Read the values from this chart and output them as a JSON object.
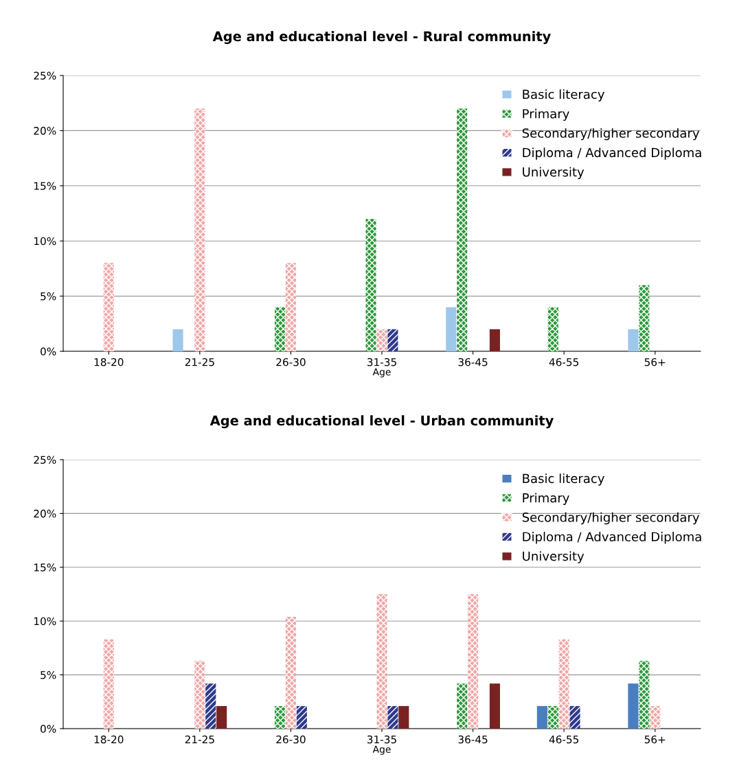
{
  "chart_data": [
    {
      "type": "bar",
      "title": "Age and educational level - Rural community",
      "xlabel": "Age",
      "categories": [
        "18-20",
        "21-25",
        "26-30",
        "31-35",
        "36-45",
        "46-55",
        "56+"
      ],
      "series": [
        {
          "name": "Basic literacy",
          "color": "#9dc8ec",
          "values": [
            0,
            2,
            0,
            0,
            4,
            0,
            2
          ]
        },
        {
          "name": "Primary",
          "color": "#2e9a3c",
          "values": [
            0,
            0,
            4,
            12,
            22,
            4,
            6
          ]
        },
        {
          "name": "Secondary/higher secondary",
          "color": "#f0a8a8",
          "values": [
            8,
            22,
            8,
            2,
            0,
            0,
            0
          ]
        },
        {
          "name": "Diploma / Advanced Diploma",
          "color": "#2f3a8c",
          "values": [
            0,
            0,
            0,
            2,
            0,
            0,
            0
          ]
        },
        {
          "name": "University",
          "color": "#7a2222",
          "values": [
            0,
            0,
            0,
            0,
            2,
            0,
            0
          ]
        }
      ],
      "ylim": [
        0,
        25
      ],
      "yticks": [
        {
          "value": 0,
          "label": "0%"
        },
        {
          "value": 5,
          "label": "5%"
        },
        {
          "value": 10,
          "label": "10%"
        },
        {
          "value": 15,
          "label": "15%"
        },
        {
          "value": 20,
          "label": "20%"
        },
        {
          "value": 25,
          "label": "25%"
        }
      ],
      "grid": "y",
      "legend": "top right"
    },
    {
      "type": "bar",
      "title": "Age and educational level - Urban community",
      "xlabel": "Age",
      "categories": [
        "18-20",
        "21-25",
        "26-30",
        "31-35",
        "36-45",
        "46-55",
        "56+"
      ],
      "series": [
        {
          "name": "Basic literacy",
          "color": "#4a7ec0",
          "values": [
            0,
            0,
            0,
            0,
            0,
            2.1,
            4.2
          ]
        },
        {
          "name": "Primary",
          "color": "#2e9a3c",
          "values": [
            0,
            0,
            2.1,
            0,
            4.2,
            2.1,
            6.3
          ]
        },
        {
          "name": "Secondary/higher secondary",
          "color": "#f0a8a8",
          "values": [
            8.3,
            6.3,
            10.4,
            12.5,
            12.5,
            8.3,
            2.1
          ]
        },
        {
          "name": "Diploma / Advanced Diploma",
          "color": "#2f3a8c",
          "values": [
            0,
            4.2,
            2.1,
            2.1,
            0,
            2.1,
            0
          ]
        },
        {
          "name": "University",
          "color": "#7a2222",
          "values": [
            0,
            2.1,
            0,
            2.1,
            4.2,
            0,
            0
          ]
        }
      ],
      "ylim": [
        0,
        25
      ],
      "yticks": [
        {
          "value": 0,
          "label": "0%"
        },
        {
          "value": 5,
          "label": "5%"
        },
        {
          "value": 10,
          "label": "10%"
        },
        {
          "value": 15,
          "label": "15%"
        },
        {
          "value": 20,
          "label": "20%"
        },
        {
          "value": 25,
          "label": "25%"
        }
      ],
      "grid": "y",
      "legend": "top right"
    }
  ]
}
